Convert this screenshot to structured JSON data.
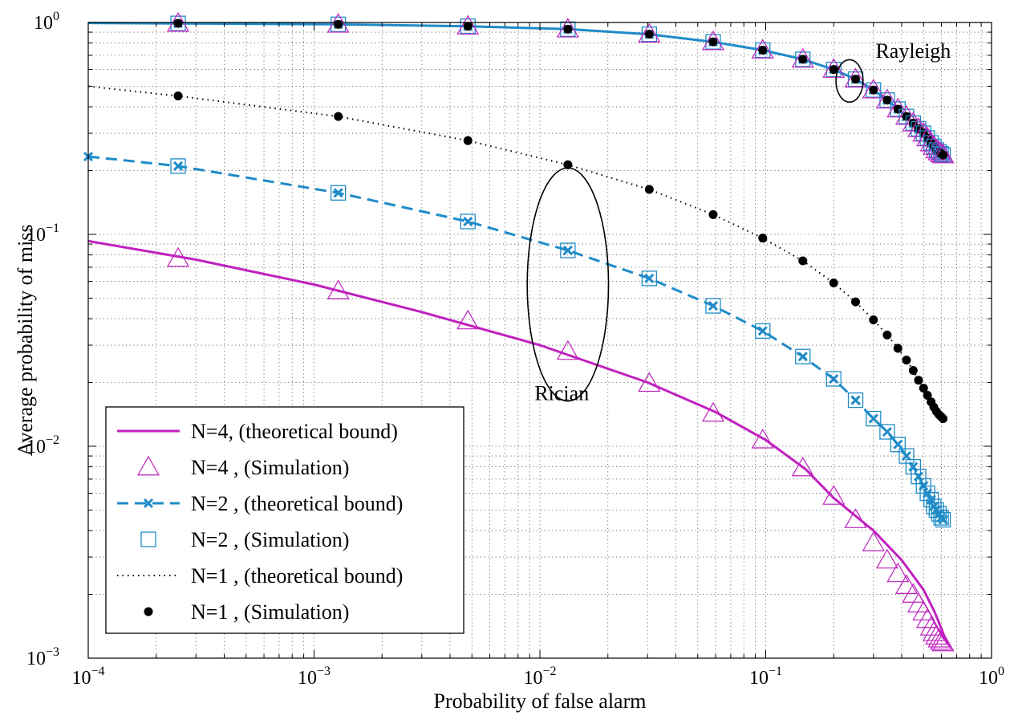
{
  "chart_data": {
    "type": "line",
    "xlabel": "Probability of false alarm",
    "ylabel": "Average probability of miss",
    "xscale": "log",
    "yscale": "log",
    "xlim": [
      0.0001,
      1
    ],
    "ylim": [
      0.001,
      1
    ],
    "grid": true,
    "legend_position": "lower-left",
    "x_ticks": [
      {
        "value": 0.0001,
        "base": "10",
        "exp": "−4"
      },
      {
        "value": 0.001,
        "base": "10",
        "exp": "−3"
      },
      {
        "value": 0.01,
        "base": "10",
        "exp": "−2"
      },
      {
        "value": 0.1,
        "base": "10",
        "exp": "−1"
      },
      {
        "value": 1,
        "base": "10",
        "exp": "0"
      }
    ],
    "y_ticks": [
      {
        "value": 0.001,
        "base": "10",
        "exp": "−3"
      },
      {
        "value": 0.01,
        "base": "10",
        "exp": "−2"
      },
      {
        "value": 0.1,
        "base": "10",
        "exp": "−1"
      },
      {
        "value": 1,
        "base": "10",
        "exp": "0"
      }
    ],
    "annotations": [
      {
        "text": "Rayleigh",
        "x": 0.45,
        "y": 0.68
      },
      {
        "text": "Rician",
        "x": 0.0125,
        "y": 0.0165
      }
    ],
    "ellipses": [
      {
        "label": "Rayleigh",
        "cx": 0.235,
        "cy": 0.53,
        "rx_decades": 0.06,
        "ry_decades": 0.1
      },
      {
        "label": "Rician",
        "cx": 0.0133,
        "cy": 0.058,
        "rx_decades": 0.18,
        "ry_decades": 0.55
      }
    ],
    "x_points": [
      0.00025,
      0.00128,
      0.0048,
      0.0133,
      0.0305,
      0.0585,
      0.097,
      0.146,
      0.2,
      0.25,
      0.3,
      0.345,
      0.385,
      0.42,
      0.45,
      0.475,
      0.5,
      0.52,
      0.54,
      0.555,
      0.57,
      0.585,
      0.598,
      0.61
    ],
    "series": [
      {
        "name": "N=4, (theoretical bound)",
        "style": "solid",
        "color": "#bf21bf",
        "marker": "none",
        "x": [
          0.0001,
          0.0003,
          0.001,
          0.003,
          0.01,
          0.03,
          0.06,
          0.1,
          0.15,
          0.2,
          0.3,
          0.4,
          0.5,
          0.56,
          0.6,
          0.63
        ],
        "y": [
          0.093,
          0.076,
          0.058,
          0.043,
          0.03,
          0.02,
          0.0145,
          0.0107,
          0.0078,
          0.0057,
          0.004,
          0.0029,
          0.0021,
          0.00165,
          0.00138,
          0.0012
        ]
      },
      {
        "name": "N=4 , (Simulation)",
        "style": "none",
        "color": "#bf21bf",
        "marker": "triangle",
        "y": [
          0.077,
          0.054,
          0.039,
          0.028,
          0.0198,
          0.0143,
          0.0107,
          0.0079,
          0.0058,
          0.0045,
          0.0035,
          0.0029,
          0.0025,
          0.0022,
          0.002,
          0.0018,
          0.00165,
          0.00152,
          0.0014,
          0.00132,
          0.00127,
          0.00123,
          0.0012,
          0.00118
        ]
      },
      {
        "name": "N=2 , (theoretical bound)",
        "style": "dashed",
        "color": "#1f8bc7",
        "marker": "x",
        "x": [
          0.0001,
          0.00025,
          0.00128,
          0.0048,
          0.0133,
          0.0305,
          0.0585,
          0.097,
          0.146,
          0.2,
          0.25,
          0.3,
          0.345,
          0.385,
          0.42,
          0.45,
          0.475,
          0.5,
          0.52,
          0.54,
          0.555,
          0.57,
          0.585,
          0.598,
          0.61
        ],
        "y": [
          0.233,
          0.21,
          0.157,
          0.115,
          0.084,
          0.062,
          0.046,
          0.035,
          0.0265,
          0.0208,
          0.0165,
          0.0135,
          0.0117,
          0.0102,
          0.009,
          0.008,
          0.0072,
          0.0065,
          0.006,
          0.0056,
          0.0052,
          0.005,
          0.0048,
          0.0046,
          0.0045
        ]
      },
      {
        "name": "N=2 , (Simulation)",
        "style": "none",
        "color": "#1f8bc7",
        "marker": "square",
        "y": [
          0.21,
          0.157,
          0.115,
          0.084,
          0.062,
          0.046,
          0.035,
          0.0265,
          0.0208,
          0.0165,
          0.0135,
          0.0117,
          0.0102,
          0.009,
          0.008,
          0.0072,
          0.0065,
          0.006,
          0.0056,
          0.0052,
          0.005,
          0.0048,
          0.0046,
          0.0045
        ]
      },
      {
        "name": "N=1 , (theoretical bound)",
        "style": "dotted",
        "color": "#000000",
        "marker": "none",
        "x": [
          0.0001,
          0.00025,
          0.00128,
          0.0048,
          0.0133,
          0.0305,
          0.0585,
          0.097,
          0.146,
          0.2,
          0.25,
          0.3,
          0.345,
          0.385,
          0.42,
          0.45,
          0.475,
          0.5,
          0.52,
          0.54,
          0.555,
          0.57,
          0.585,
          0.598,
          0.61
        ],
        "y": [
          0.5,
          0.45,
          0.36,
          0.277,
          0.213,
          0.163,
          0.124,
          0.096,
          0.075,
          0.059,
          0.048,
          0.0395,
          0.0335,
          0.029,
          0.0255,
          0.0228,
          0.0205,
          0.0188,
          0.0174,
          0.0162,
          0.0153,
          0.0146,
          0.0141,
          0.0138,
          0.0135
        ]
      },
      {
        "name": "N=1 , (Simulation)",
        "style": "none",
        "color": "#000000",
        "marker": "dot",
        "y": [
          0.45,
          0.36,
          0.277,
          0.213,
          0.163,
          0.124,
          0.096,
          0.075,
          0.059,
          0.048,
          0.0395,
          0.0335,
          0.029,
          0.0255,
          0.0228,
          0.0205,
          0.0188,
          0.0174,
          0.0162,
          0.0153,
          0.0146,
          0.0141,
          0.0138,
          0.0135
        ]
      },
      {
        "name": "Rayleigh (theoretical bound)",
        "legend": false,
        "style": "solid",
        "color": "#1f8bc7",
        "marker": "none",
        "x": [
          0.0001,
          0.00025,
          0.00128,
          0.0048,
          0.0133,
          0.0305,
          0.0585,
          0.097,
          0.146,
          0.2,
          0.25,
          0.3,
          0.345,
          0.385,
          0.42,
          0.45,
          0.475,
          0.5,
          0.52,
          0.54,
          0.555,
          0.57,
          0.585,
          0.598,
          0.61
        ],
        "y": [
          0.995,
          0.99,
          0.98,
          0.96,
          0.93,
          0.88,
          0.81,
          0.74,
          0.67,
          0.6,
          0.54,
          0.48,
          0.43,
          0.39,
          0.36,
          0.335,
          0.315,
          0.3,
          0.285,
          0.27,
          0.26,
          0.25,
          0.245,
          0.24,
          0.237
        ]
      },
      {
        "name": "Rayleigh (Simulation)",
        "legend": false,
        "style": "none",
        "color": "#000000",
        "marker": "tri-square-dot",
        "y": [
          0.99,
          0.98,
          0.96,
          0.93,
          0.88,
          0.81,
          0.74,
          0.67,
          0.6,
          0.54,
          0.48,
          0.43,
          0.39,
          0.36,
          0.335,
          0.315,
          0.3,
          0.285,
          0.27,
          0.26,
          0.25,
          0.245,
          0.24,
          0.237
        ]
      }
    ]
  }
}
